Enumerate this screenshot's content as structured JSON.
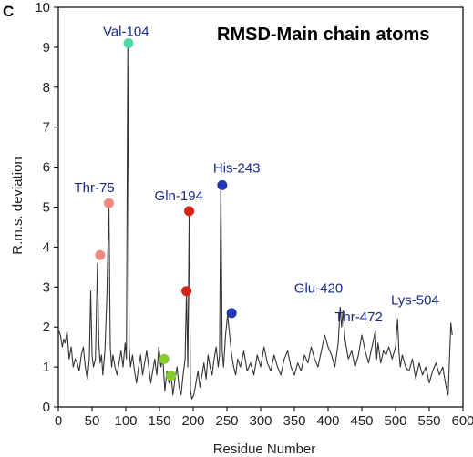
{
  "panel_label": "C",
  "chart_data": {
    "type": "line",
    "title": "RMSD-Main chain atoms",
    "xlabel": "Residue Number",
    "ylabel": "R.m.s. deviation",
    "xlim": [
      0,
      600
    ],
    "ylim": [
      0,
      10
    ],
    "xticks": [
      0,
      50,
      100,
      150,
      200,
      250,
      300,
      350,
      400,
      450,
      500,
      550,
      600
    ],
    "yticks": [
      0,
      1,
      2,
      3,
      4,
      5,
      6,
      7,
      8,
      9,
      10
    ],
    "grid": false,
    "line_color": "#333333",
    "series": [
      {
        "x": [
          1,
          3,
          6,
          8,
          10,
          13,
          16,
          19,
          22,
          25,
          28,
          31,
          34,
          37,
          40,
          43,
          46,
          48,
          50,
          52,
          55,
          58,
          60,
          62,
          64,
          66,
          69,
          72,
          75,
          77,
          79,
          81,
          84,
          87,
          90,
          93,
          96,
          99,
          101,
          103,
          105,
          107,
          110,
          113,
          116,
          119,
          122,
          125,
          128,
          131,
          134,
          137,
          140,
          143,
          146,
          149,
          152,
          155,
          158,
          161,
          164,
          167,
          170,
          173,
          176,
          179,
          182,
          185,
          188,
          190,
          192,
          194,
          196,
          198,
          201,
          204,
          207,
          210,
          213,
          216,
          219,
          222,
          225,
          228,
          231,
          234,
          237,
          239,
          241,
          243,
          245,
          248,
          251,
          254,
          257,
          260,
          263,
          266,
          270,
          275,
          280,
          285,
          290,
          295,
          300,
          305,
          310,
          315,
          320,
          325,
          330,
          335,
          340,
          345,
          350,
          355,
          360,
          365,
          370,
          375,
          380,
          385,
          390,
          395,
          400,
          405,
          410,
          415,
          418,
          420,
          422,
          425,
          430,
          435,
          440,
          445,
          450,
          455,
          460,
          465,
          470,
          472,
          474,
          478,
          482,
          486,
          490,
          495,
          500,
          503,
          505,
          507,
          510,
          515,
          520,
          525,
          530,
          535,
          540,
          545,
          550,
          555,
          560,
          565,
          570,
          575,
          578,
          580,
          582,
          584
        ],
        "y": [
          1.9,
          1.8,
          1.5,
          1.7,
          1.6,
          1.9,
          1.2,
          1.5,
          1.0,
          1.2,
          1.1,
          0.9,
          1.3,
          1.5,
          1.0,
          0.7,
          1.2,
          2.9,
          1.3,
          1.0,
          1.2,
          3.6,
          1.6,
          1.1,
          1.3,
          0.8,
          1.4,
          2.8,
          5.1,
          1.5,
          1.0,
          1.3,
          1.0,
          0.8,
          1.1,
          1.4,
          1.0,
          1.6,
          1.2,
          9.1,
          1.5,
          1.0,
          1.3,
          0.9,
          0.6,
          1.0,
          1.3,
          0.8,
          1.1,
          1.4,
          1.0,
          0.6,
          0.9,
          1.2,
          0.8,
          1.5,
          1.0,
          1.2,
          0.4,
          0.9,
          0.6,
          0.8,
          0.3,
          0.7,
          1.0,
          0.5,
          0.3,
          0.8,
          1.2,
          2.9,
          1.0,
          4.9,
          0.4,
          0.2,
          0.3,
          0.6,
          0.9,
          0.5,
          0.8,
          1.1,
          0.7,
          1.3,
          1.0,
          0.8,
          1.2,
          1.5,
          1.0,
          1.3,
          5.6,
          1.4,
          1.0,
          1.8,
          2.3,
          1.8,
          1.3,
          1.0,
          0.8,
          1.2,
          1.0,
          1.4,
          0.9,
          1.1,
          0.8,
          1.3,
          1.0,
          1.5,
          1.1,
          0.9,
          1.3,
          1.0,
          0.8,
          1.2,
          1.4,
          1.0,
          0.8,
          1.1,
          0.9,
          1.3,
          1.1,
          1.5,
          1.2,
          1.0,
          1.4,
          1.8,
          1.5,
          1.3,
          1.0,
          1.6,
          2.5,
          2.0,
          2.4,
          1.7,
          1.2,
          1.4,
          1.0,
          1.3,
          1.8,
          1.4,
          1.1,
          1.5,
          1.9,
          1.2,
          1.6,
          1.1,
          1.4,
          1.3,
          1.5,
          1.2,
          1.5,
          2.2,
          1.4,
          1.0,
          1.3,
          1.0,
          0.9,
          1.2,
          0.7,
          1.1,
          0.8,
          1.0,
          0.6,
          0.9,
          1.1,
          0.8,
          1.0,
          0.5,
          0.3,
          1.2,
          2.1,
          1.8
        ]
      }
    ],
    "annotations": [
      {
        "label": "Val-104",
        "x": 104,
        "y": 9.1,
        "label_color": "#1a2a8a",
        "marker_color": "#4fd8a8",
        "label_dx": -28,
        "label_dy": -8
      },
      {
        "label": "Thr-75",
        "x": 75,
        "y": 5.1,
        "label_color": "#1a2a8a",
        "marker_color": "#f08a80",
        "label_dx": -38,
        "label_dy": -12
      },
      {
        "label": "",
        "x": 62,
        "y": 3.8,
        "label_color": "#1a2a8a",
        "marker_color": "#f08a80"
      },
      {
        "label": "Gln-194",
        "x": 194,
        "y": 4.9,
        "label_color": "#1a2a8a",
        "marker_color": "#d42418",
        "label_dx": -38,
        "label_dy": -12
      },
      {
        "label": "",
        "x": 190,
        "y": 2.9,
        "label_color": "#1a2a8a",
        "marker_color": "#d42418"
      },
      {
        "label": "His-243",
        "x": 243,
        "y": 5.55,
        "label_color": "#1a2a8a",
        "marker_color": "#2436b0",
        "label_dx": -10,
        "label_dy": -14
      },
      {
        "label": "",
        "x": 257,
        "y": 2.35,
        "label_color": "#1a2a8a",
        "marker_color": "#2436b0"
      },
      {
        "label": "",
        "x": 157,
        "y": 1.2,
        "label_color": "#1a2a8a",
        "marker_color": "#86cc2a"
      },
      {
        "label": "",
        "x": 167,
        "y": 0.78,
        "label_color": "#1a2a8a",
        "marker_color": "#86cc2a"
      },
      {
        "label": "Glu-420",
        "x": 420,
        "y": 2.5,
        "label_color": "#1a2a8a",
        "label_dx": -52,
        "label_dy": -16
      },
      {
        "label": "Thr-472",
        "x": 472,
        "y": 2.0,
        "label_color": "#1a2a8a",
        "label_dx": -46,
        "label_dy": -6
      },
      {
        "label": "Lys-504",
        "x": 504,
        "y": 2.2,
        "label_color": "#1a2a8a",
        "label_dx": -8,
        "label_dy": -16
      }
    ]
  }
}
